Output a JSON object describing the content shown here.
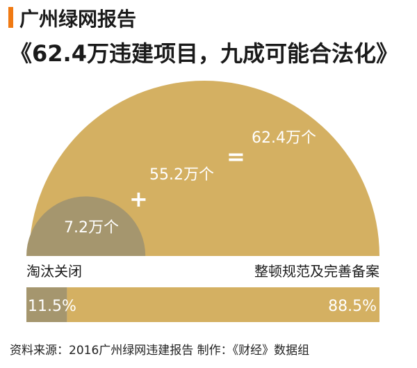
{
  "header": {
    "title": "广州绿网报告",
    "subtitle": "《62.4万违建项目，九成可能合法化》"
  },
  "chart_data": {
    "type": "area",
    "total": {
      "value": 62.4,
      "label": "62.4万个"
    },
    "parts": [
      {
        "name": "淘汰关闭",
        "value": 7.2,
        "label": "7.2万个",
        "percent": 11.5,
        "percent_label": "11.5%",
        "color": "#a5966e"
      },
      {
        "name": "整顿规范及完善备案",
        "value": 55.2,
        "label": "55.2万个",
        "percent": 88.5,
        "percent_label": "88.5%",
        "color": "#d4b062"
      }
    ],
    "operators": {
      "plus": "+",
      "equals": "="
    }
  },
  "footer": {
    "source": "资料来源：2016广州绿网违建报告  制作：《财经》数据组"
  }
}
